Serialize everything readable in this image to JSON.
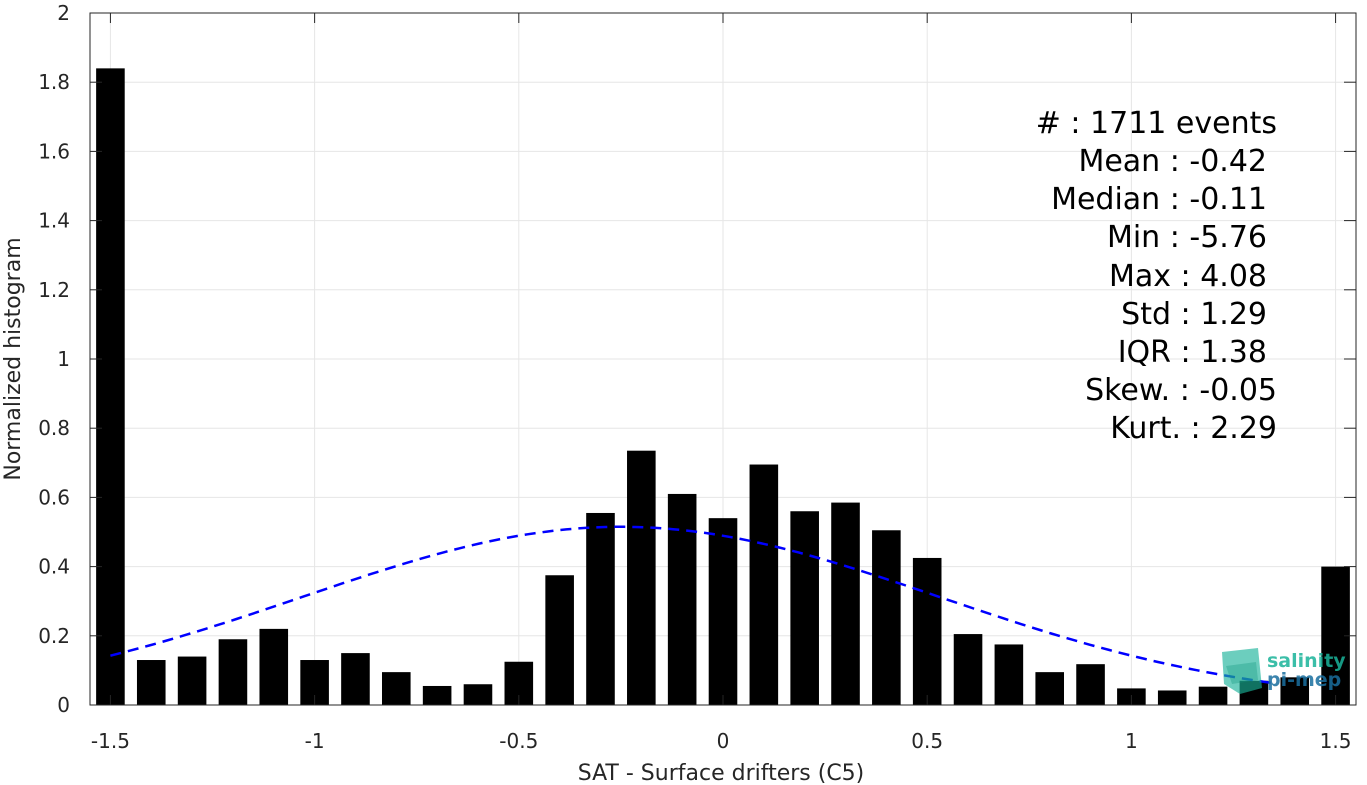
{
  "chart_data": {
    "type": "bar",
    "xlabel": "SAT - Surface drifters (C5)",
    "ylabel": "Normalized histogram",
    "xlim": [
      -1.55,
      1.55
    ],
    "ylim": [
      0,
      2
    ],
    "grid": true,
    "x_ticks": [
      "-1.5",
      "-1",
      "-0.5",
      "0",
      "0.5",
      "1",
      "1.5"
    ],
    "y_ticks": [
      "0",
      "0.2",
      "0.4",
      "0.6",
      "0.8",
      "1",
      "1.2",
      "1.4",
      "1.6",
      "1.8",
      "2"
    ],
    "bar_width": 0.07,
    "bars": [
      {
        "x": -1.5,
        "y": 1.84
      },
      {
        "x": -1.4,
        "y": 0.13
      },
      {
        "x": -1.3,
        "y": 0.14
      },
      {
        "x": -1.2,
        "y": 0.19
      },
      {
        "x": -1.1,
        "y": 0.22
      },
      {
        "x": -1.0,
        "y": 0.13
      },
      {
        "x": -0.9,
        "y": 0.15
      },
      {
        "x": -0.8,
        "y": 0.095
      },
      {
        "x": -0.7,
        "y": 0.055
      },
      {
        "x": -0.6,
        "y": 0.06
      },
      {
        "x": -0.5,
        "y": 0.125
      },
      {
        "x": -0.4,
        "y": 0.375
      },
      {
        "x": -0.3,
        "y": 0.555
      },
      {
        "x": -0.2,
        "y": 0.735
      },
      {
        "x": -0.1,
        "y": 0.61
      },
      {
        "x": 0.0,
        "y": 0.54
      },
      {
        "x": 0.1,
        "y": 0.695
      },
      {
        "x": 0.2,
        "y": 0.56
      },
      {
        "x": 0.3,
        "y": 0.585
      },
      {
        "x": 0.4,
        "y": 0.505
      },
      {
        "x": 0.5,
        "y": 0.425
      },
      {
        "x": 0.6,
        "y": 0.205
      },
      {
        "x": 0.7,
        "y": 0.175
      },
      {
        "x": 0.8,
        "y": 0.095
      },
      {
        "x": 0.9,
        "y": 0.118
      },
      {
        "x": 1.0,
        "y": 0.048
      },
      {
        "x": 1.1,
        "y": 0.042
      },
      {
        "x": 1.2,
        "y": 0.053
      },
      {
        "x": 1.3,
        "y": 0.07
      },
      {
        "x": 1.4,
        "y": 0.08
      },
      {
        "x": 1.5,
        "y": 0.4
      }
    ],
    "fit_curve": {
      "style": "dashed",
      "color": "#0000ff",
      "mean": -0.25,
      "std": 0.78,
      "peak": 0.515,
      "x_range": [
        -1.5,
        1.35
      ]
    },
    "bar_color": "#000000",
    "stats": {
      "events": "#  : 1711 events",
      "mean": "Mean : -0.42",
      "median": "Median : -0.11",
      "min": "Min : -5.76",
      "max": "Max : 4.08",
      "std": "Std : 1.29",
      "iqr": "IQR : 1.38",
      "skew": "Skew. : -0.05",
      "kurt": "Kurt. : 2.29"
    }
  },
  "logo": {
    "line1": "salinity",
    "line2": "pi-mep",
    "color1": "#1ab39a",
    "color2": "#1a6f9f"
  }
}
